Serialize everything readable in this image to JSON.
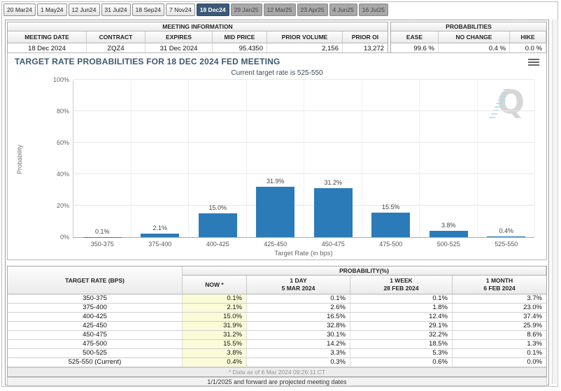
{
  "tabs": [
    {
      "label": "20 Mar24",
      "state": "normal"
    },
    {
      "label": "1 May24",
      "state": "normal"
    },
    {
      "label": "12 Jun24",
      "state": "normal"
    },
    {
      "label": "31 Jul24",
      "state": "normal"
    },
    {
      "label": "18 Sep24",
      "state": "normal"
    },
    {
      "label": "7 Nov24",
      "state": "normal"
    },
    {
      "label": "18 Dec24",
      "state": "selected"
    },
    {
      "label": "29 Jan25",
      "state": "disabled"
    },
    {
      "label": "12 Mar25",
      "state": "disabled"
    },
    {
      "label": "23 Apr25",
      "state": "disabled"
    },
    {
      "label": "4 Jun25",
      "state": "disabled"
    },
    {
      "label": "16 Jul25",
      "state": "disabled"
    }
  ],
  "meeting_info": {
    "title": "MEETING INFORMATION",
    "headers": [
      "MEETING DATE",
      "CONTRACT",
      "EXPIRES",
      "MID PRICE",
      "PRIOR VOLUME",
      "PRIOR OI"
    ],
    "values": [
      "18 Dec 2024",
      "ZQZ4",
      "31 Dec 2024",
      "95.4350",
      "2,156",
      "13,272"
    ]
  },
  "probabilities": {
    "title": "PROBABILITIES",
    "headers": [
      "EASE",
      "NO CHANGE",
      "HIKE"
    ],
    "values": [
      "99.6 %",
      "0.4 %",
      "0.0 %"
    ]
  },
  "chart_data": {
    "type": "bar",
    "title": "TARGET RATE PROBABILITIES FOR 18 DEC 2024 FED MEETING",
    "subtitle": "Current target rate is 525-550",
    "categories": [
      "350-375",
      "375-400",
      "400-425",
      "425-450",
      "450-475",
      "475-500",
      "500-525",
      "525-550"
    ],
    "values": [
      0.1,
      2.1,
      15.0,
      31.9,
      31.2,
      15.5,
      3.8,
      0.4
    ],
    "xlabel": "Target Rate (in bps)",
    "ylabel": "Probability",
    "ylim": [
      0,
      100
    ],
    "yticks": [
      "0%",
      "20%",
      "40%",
      "60%",
      "80%",
      "100%"
    ],
    "grid": true,
    "legend": false
  },
  "prob_table": {
    "col1_header": "TARGET RATE (BPS)",
    "group_header": "PROBABILITY(%)",
    "columns": [
      {
        "label": "NOW *",
        "date": ""
      },
      {
        "label": "1 DAY",
        "date": "5 MAR 2024"
      },
      {
        "label": "1 WEEK",
        "date": "28 FEB 2024"
      },
      {
        "label": "1 MONTH",
        "date": "6 FEB 2024"
      }
    ],
    "rows": [
      [
        "350-375",
        "0.1%",
        "0.1%",
        "0.1%",
        "3.7%"
      ],
      [
        "375-400",
        "2.1%",
        "2.6%",
        "1.8%",
        "23.0%"
      ],
      [
        "400-425",
        "15.0%",
        "16.5%",
        "12.4%",
        "37.4%"
      ],
      [
        "425-450",
        "31.9%",
        "32.8%",
        "29.1%",
        "25.9%"
      ],
      [
        "450-475",
        "31.2%",
        "30.1%",
        "32.2%",
        "8.6%"
      ],
      [
        "475-500",
        "15.5%",
        "14.2%",
        "18.5%",
        "1.3%"
      ],
      [
        "500-525",
        "3.8%",
        "3.3%",
        "5.3%",
        "0.1%"
      ],
      [
        "525-550 (Current)",
        "0.4%",
        "0.3%",
        "0.6%",
        "0.0%"
      ]
    ],
    "footnote": "* Data as of 6 Mar 2024 09:26:11 CT"
  },
  "footer": {
    "note": "1/1/2025 and forward are projected meeting dates"
  },
  "watermark": "Q",
  "colors": {
    "bar": "#2b7bb9",
    "selected_tab": "#3c5a77",
    "now_column": "#fbfbd8"
  }
}
